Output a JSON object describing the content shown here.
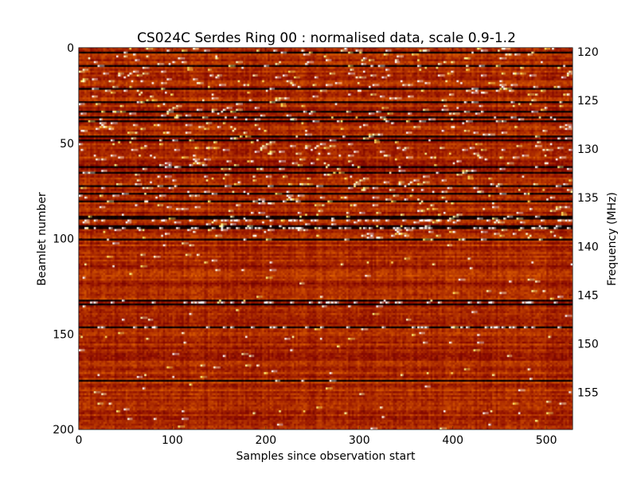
{
  "chart_data": {
    "type": "heatmap",
    "title": "CS024C Serdes Ring 00 : normalised data, scale 0.9-1.2",
    "xlabel": "Samples since observation start",
    "ylabel": "Beamlet number",
    "ylabel_right": "Frequency (MHz)",
    "xlim": [
      0,
      528
    ],
    "ylim": [
      200,
      0
    ],
    "ylim_right": [
      119.6,
      158.8
    ],
    "color_range": [
      0.9,
      1.2
    ],
    "colormap": "afmhot",
    "x_ticks": [
      "0",
      "100",
      "200",
      "300",
      "400",
      "500"
    ],
    "y_ticks": [
      "0",
      "50",
      "100",
      "150",
      "200"
    ],
    "y_ticks_right": [
      "120",
      "125",
      "130",
      "135",
      "140",
      "145",
      "150",
      "155"
    ],
    "n_beamlets": 200,
    "n_samples": 528,
    "base_value": 1.0,
    "dark_rows": [
      2,
      9,
      21,
      28,
      33,
      36,
      38,
      46,
      48,
      62,
      65,
      72,
      76,
      80,
      88,
      89,
      93,
      94,
      100,
      132,
      134,
      146,
      174
    ],
    "bright_rows": [
      90,
      94,
      133,
      146
    ],
    "rfi_region_beamlets": [
      0,
      100
    ]
  },
  "colors": {
    "frame": "#000000",
    "background": "#ffffff"
  }
}
